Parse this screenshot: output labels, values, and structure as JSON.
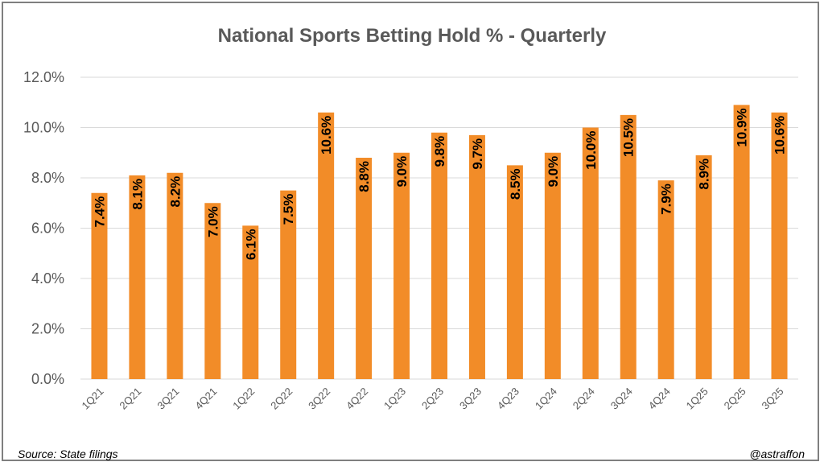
{
  "chart_data": {
    "type": "bar",
    "title": "National Sports Betting Hold % - Quarterly",
    "xlabel": "",
    "ylabel": "",
    "categories": [
      "1Q21",
      "2Q21",
      "3Q21",
      "4Q21",
      "1Q22",
      "2Q22",
      "3Q22",
      "4Q22",
      "1Q23",
      "2Q23",
      "3Q23",
      "4Q23",
      "1Q24",
      "2Q24",
      "3Q24",
      "4Q24",
      "1Q25",
      "2Q25",
      "3Q25"
    ],
    "values": [
      7.4,
      8.1,
      8.2,
      7.0,
      6.1,
      7.5,
      10.6,
      8.8,
      9.0,
      9.8,
      9.7,
      8.5,
      9.0,
      10.0,
      10.5,
      7.9,
      8.9,
      10.9,
      10.6
    ],
    "data_labels": [
      "7.4%",
      "8.1%",
      "8.2%",
      "7.0%",
      "6.1%",
      "7.5%",
      "10.6%",
      "8.8%",
      "9.0%",
      "9.8%",
      "9.7%",
      "8.5%",
      "9.0%",
      "10.0%",
      "10.5%",
      "7.9%",
      "8.9%",
      "10.9%",
      "10.6%"
    ],
    "yticks": [
      0,
      2,
      4,
      6,
      8,
      10,
      12
    ],
    "ytick_labels": [
      "0.0%",
      "2.0%",
      "4.0%",
      "6.0%",
      "8.0%",
      "10.0%",
      "12.0%"
    ],
    "ylim": [
      0,
      12
    ],
    "grid": true,
    "legend": "none",
    "bar_color": "#F28C28",
    "grid_color": "#d9d9d9"
  },
  "footer": {
    "source": "Source: State filings",
    "credit": "@astraffon"
  }
}
